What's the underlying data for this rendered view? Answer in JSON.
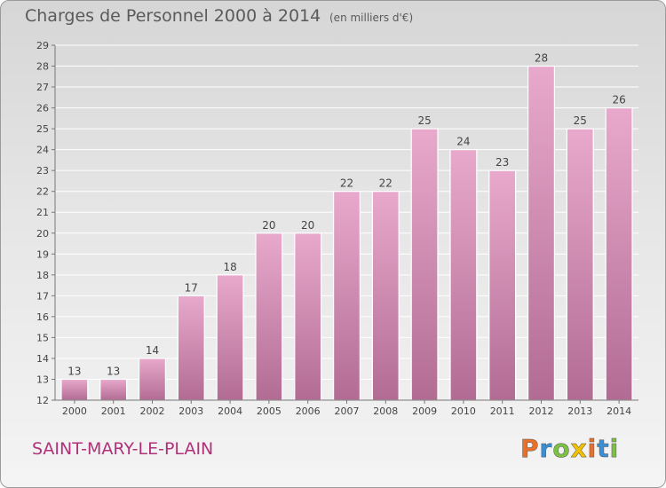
{
  "header": {
    "title": "Charges de Personnel 2000 à 2014",
    "subtitle": "(en milliers d'€)"
  },
  "footer": {
    "location": "SAINT-MARY-LE-PLAIN",
    "logo_text": "Proxiti"
  },
  "colors": {
    "bar_top": "#e8a9cc",
    "bar_bottom": "#b26c94",
    "location_text": "#b0327a"
  },
  "chart_data": {
    "type": "bar",
    "title": "Charges de Personnel 2000 à 2014",
    "subtitle": "(en milliers d'€)",
    "categories": [
      "2000",
      "2001",
      "2002",
      "2003",
      "2004",
      "2005",
      "2006",
      "2007",
      "2008",
      "2009",
      "2010",
      "2011",
      "2012",
      "2013",
      "2014"
    ],
    "values": [
      13,
      13,
      14,
      17,
      18,
      20,
      20,
      22,
      22,
      25,
      24,
      23,
      28,
      25,
      26
    ],
    "ylim": [
      12,
      29
    ],
    "yticks": [
      12,
      13,
      14,
      15,
      16,
      17,
      18,
      19,
      20,
      21,
      22,
      23,
      24,
      25,
      26,
      27,
      28,
      29
    ],
    "grid": true,
    "legend": "none"
  }
}
